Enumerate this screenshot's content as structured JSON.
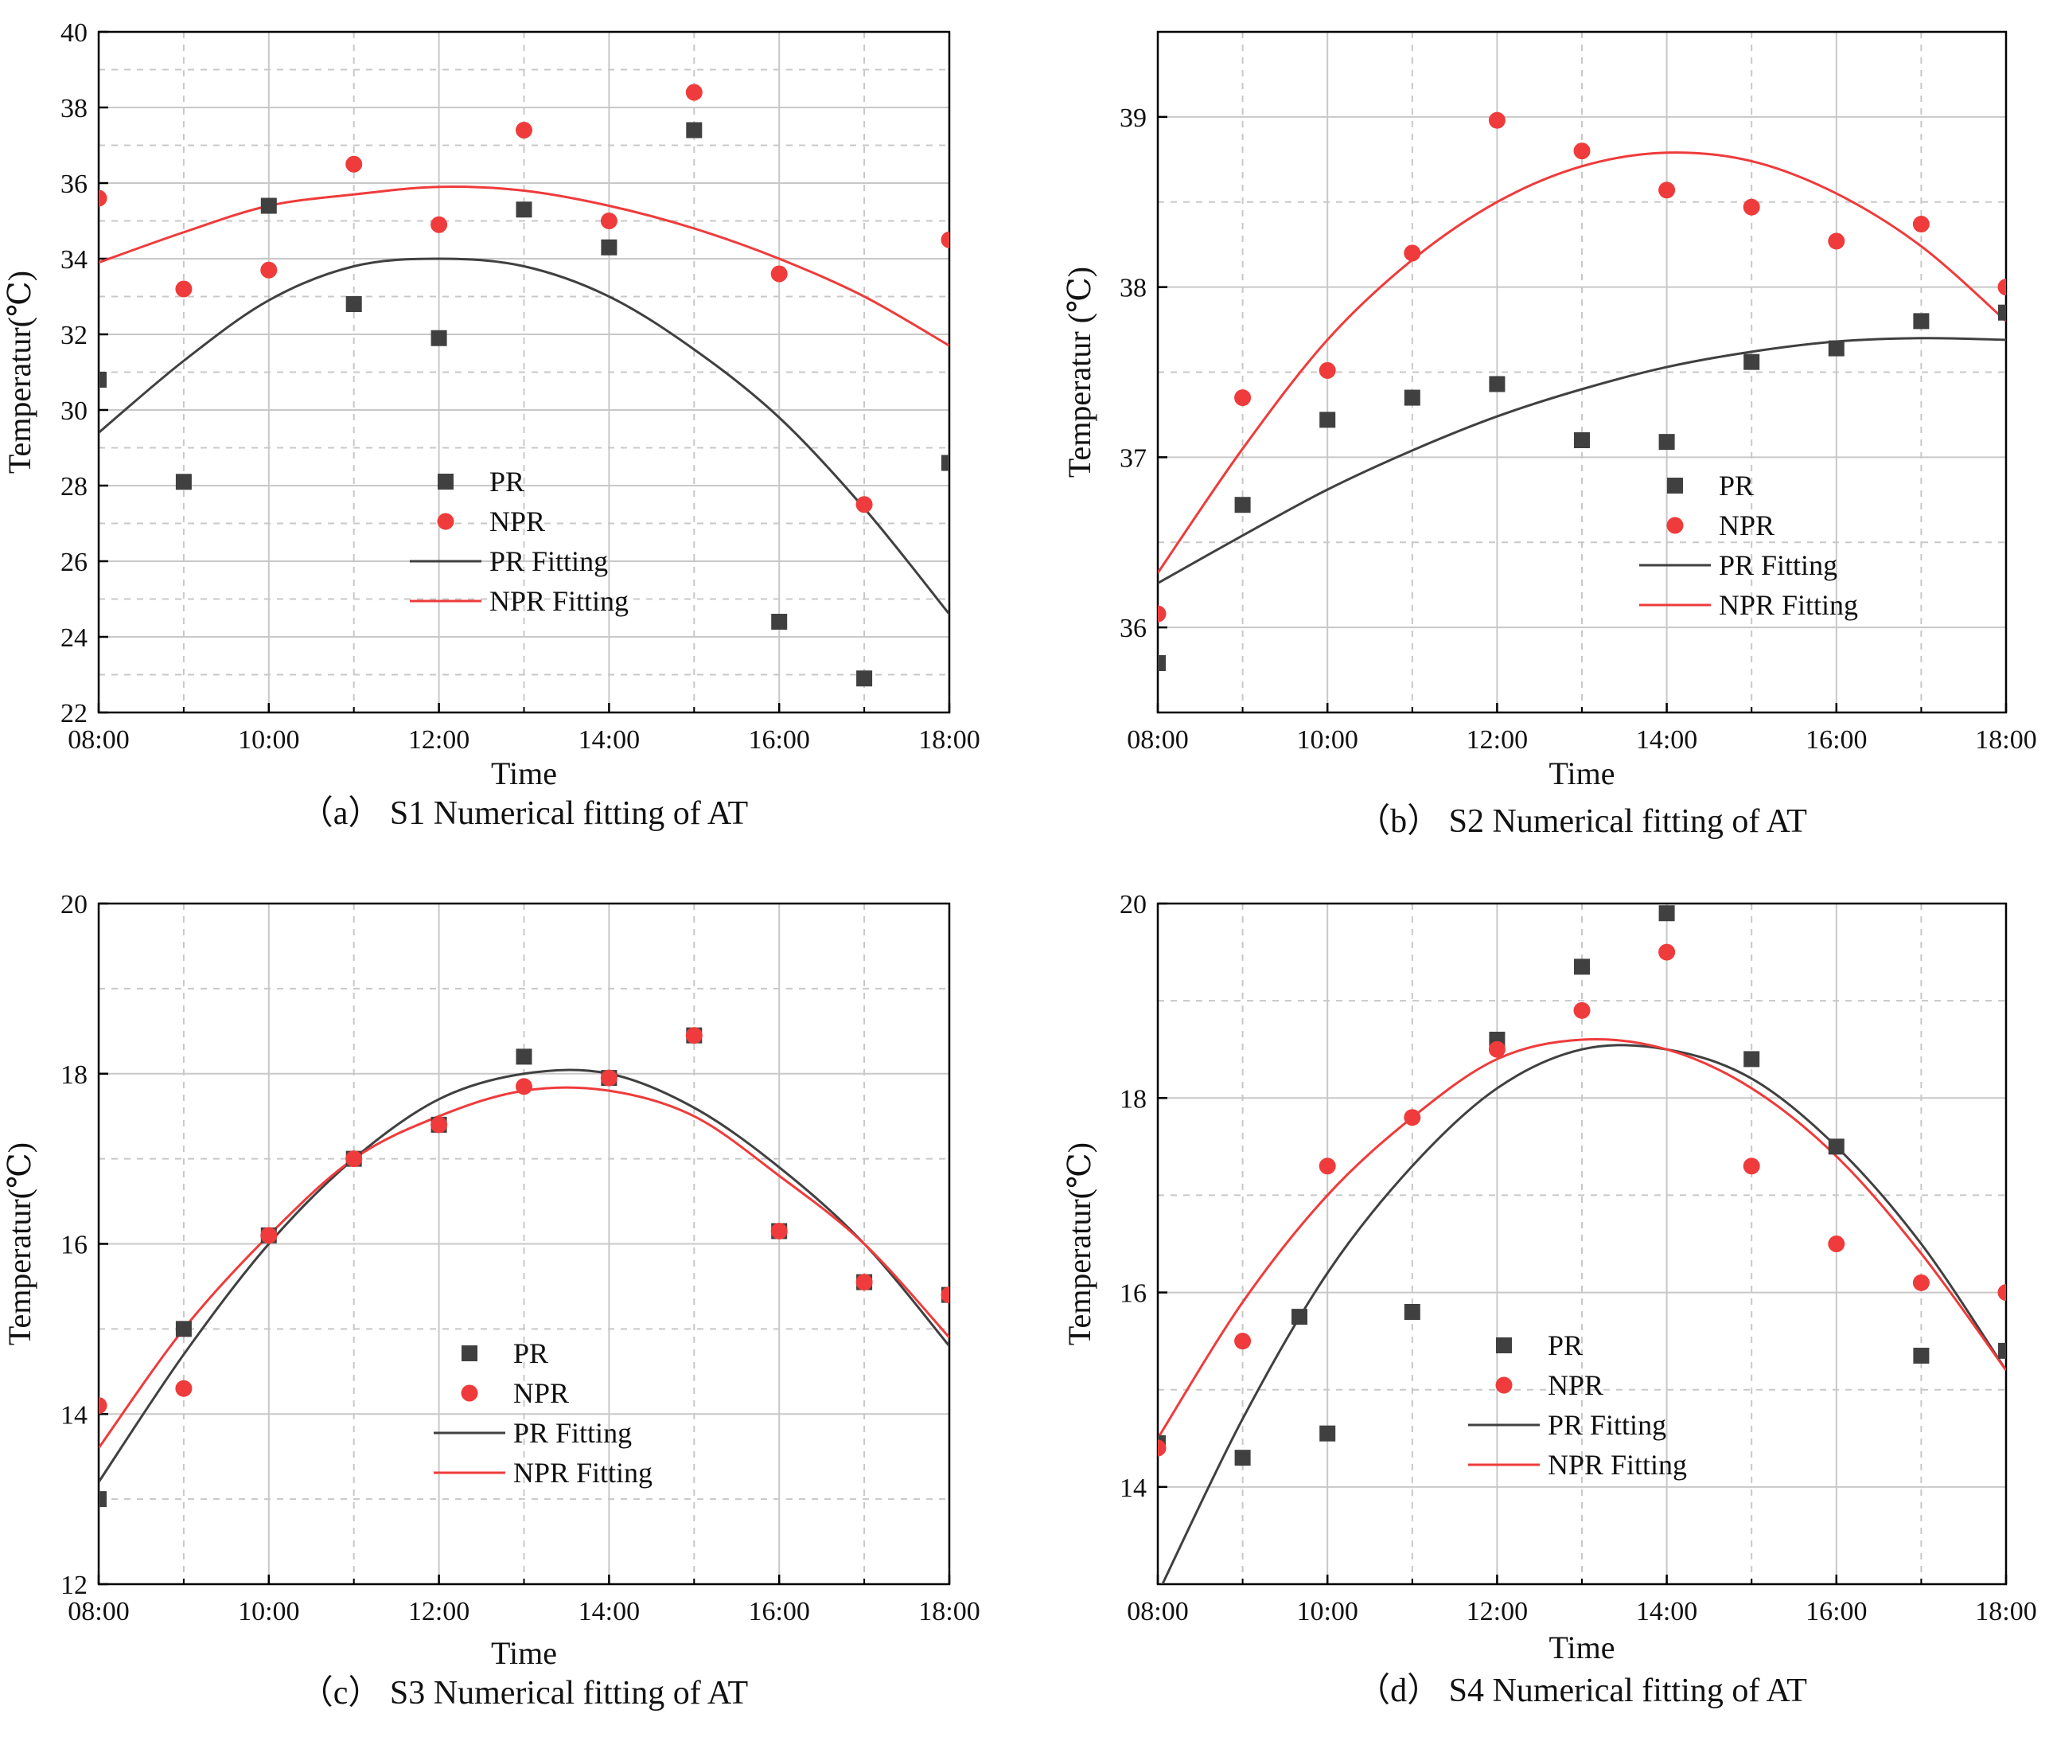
{
  "figure": {
    "colors": {
      "pr": "#404040",
      "npr": "#ef3b3b",
      "axis": "#000000",
      "grid": "#c8c8c8"
    }
  },
  "chart_data": [
    {
      "panel": "a",
      "type": "scatter",
      "caption": "（a） S1 Numerical fitting of AT",
      "xlabel": "Time",
      "ylabel": "Temperatur(℃)",
      "xlim": [
        8,
        18
      ],
      "ylim": [
        22,
        40
      ],
      "x_ticks": [
        "08:00",
        "10:00",
        "12:00",
        "14:00",
        "16:00",
        "18:00"
      ],
      "y_ticks": [
        "22",
        "24",
        "26",
        "28",
        "30",
        "32",
        "34",
        "36",
        "38",
        "40"
      ],
      "grid": true,
      "legend_position": "center",
      "series": [
        {
          "name": "PR",
          "marker": "square",
          "color": "#404040",
          "x": [
            8,
            9,
            10,
            11,
            12,
            13,
            14,
            15,
            16,
            17,
            18
          ],
          "y": [
            30.8,
            28.1,
            35.4,
            32.8,
            31.9,
            35.3,
            34.3,
            37.4,
            24.4,
            22.9,
            28.6
          ]
        },
        {
          "name": "NPR",
          "marker": "circle",
          "color": "#ef3b3b",
          "x": [
            8,
            9,
            10,
            11,
            12,
            13,
            14,
            15,
            16,
            17,
            18
          ],
          "y": [
            35.6,
            33.2,
            33.7,
            36.5,
            34.9,
            37.4,
            35.0,
            38.4,
            33.6,
            27.5,
            34.5
          ]
        },
        {
          "name": "PR Fitting",
          "line": true,
          "color": "#404040",
          "x": [
            8,
            9,
            10,
            11,
            12,
            13,
            14,
            15,
            16,
            17,
            18
          ],
          "y": [
            29.4,
            31.3,
            32.9,
            33.8,
            34.0,
            33.8,
            33.0,
            31.6,
            29.8,
            27.4,
            24.6
          ]
        },
        {
          "name": "NPR Fitting",
          "line": true,
          "color": "#ef3b3b",
          "x": [
            8,
            9,
            10,
            11,
            12,
            13,
            14,
            15,
            16,
            17,
            18
          ],
          "y": [
            33.9,
            34.7,
            35.4,
            35.7,
            35.9,
            35.8,
            35.4,
            34.8,
            34.0,
            33.0,
            31.7
          ]
        }
      ]
    },
    {
      "panel": "b",
      "type": "scatter",
      "caption": "（b） S2 Numerical fitting of AT",
      "xlabel": "Time",
      "ylabel": "Temperatur (℃)",
      "xlim": [
        8,
        18
      ],
      "ylim": [
        35.5,
        39.5
      ],
      "x_ticks": [
        "08:00",
        "10:00",
        "12:00",
        "14:00",
        "16:00",
        "18:00"
      ],
      "y_ticks": [
        "36",
        "37",
        "38",
        "39"
      ],
      "grid": true,
      "legend_position": "center-right",
      "series": [
        {
          "name": "PR",
          "marker": "square",
          "color": "#404040",
          "x": [
            8,
            9,
            10,
            11,
            12,
            13,
            14,
            15,
            16,
            17,
            18
          ],
          "y": [
            35.79,
            36.72,
            37.22,
            37.35,
            37.43,
            37.1,
            37.09,
            37.56,
            37.64,
            37.8,
            37.85
          ]
        },
        {
          "name": "NPR",
          "marker": "circle",
          "color": "#ef3b3b",
          "x": [
            8,
            9,
            10,
            11,
            12,
            13,
            14,
            15,
            16,
            17,
            18
          ],
          "y": [
            36.08,
            37.35,
            37.51,
            38.2,
            38.98,
            38.8,
            38.57,
            38.47,
            38.27,
            38.37,
            38.0
          ]
        },
        {
          "name": "PR Fitting",
          "line": true,
          "color": "#404040",
          "x": [
            8,
            9,
            10,
            11,
            12,
            13,
            14,
            15,
            16,
            17,
            18
          ],
          "y": [
            36.26,
            36.54,
            36.81,
            37.04,
            37.24,
            37.4,
            37.53,
            37.62,
            37.68,
            37.7,
            37.69
          ]
        },
        {
          "name": "NPR Fitting",
          "line": true,
          "color": "#ef3b3b",
          "x": [
            8,
            9,
            10,
            11,
            12,
            13,
            14,
            15,
            16,
            17,
            18
          ],
          "y": [
            36.32,
            37.05,
            37.69,
            38.16,
            38.5,
            38.71,
            38.79,
            38.74,
            38.55,
            38.24,
            37.8
          ]
        }
      ]
    },
    {
      "panel": "c",
      "type": "scatter",
      "caption": "（c） S3 Numerical fitting of AT",
      "xlabel": "Time",
      "ylabel": "Temperatur(℃)",
      "xlim": [
        8,
        18
      ],
      "ylim": [
        12,
        20
      ],
      "x_ticks": [
        "08:00",
        "10:00",
        "12:00",
        "14:00",
        "16:00",
        "18:00"
      ],
      "y_ticks": [
        "12",
        "14",
        "16",
        "18",
        "20"
      ],
      "grid": true,
      "legend_position": "center",
      "series": [
        {
          "name": "PR",
          "marker": "square",
          "color": "#404040",
          "x": [
            8,
            9,
            10,
            11,
            12,
            13,
            14,
            15,
            16,
            17,
            18
          ],
          "y": [
            13.0,
            15.0,
            16.1,
            17.0,
            17.4,
            18.2,
            17.95,
            18.45,
            16.15,
            15.55,
            15.4
          ]
        },
        {
          "name": "NPR",
          "marker": "circle",
          "color": "#ef3b3b",
          "x": [
            8,
            9,
            10,
            11,
            12,
            13,
            14,
            15,
            16,
            17,
            18
          ],
          "y": [
            14.1,
            14.3,
            16.1,
            17.0,
            17.4,
            17.85,
            17.95,
            18.45,
            16.15,
            15.55,
            15.4
          ]
        },
        {
          "name": "PR Fitting",
          "line": true,
          "color": "#404040",
          "x": [
            8,
            9,
            10,
            11,
            12,
            13,
            14,
            15,
            16,
            17,
            18
          ],
          "y": [
            13.2,
            14.7,
            16.0,
            17.0,
            17.7,
            18.0,
            18.0,
            17.6,
            16.9,
            16.0,
            14.8
          ]
        },
        {
          "name": "NPR Fitting",
          "line": true,
          "color": "#ef3b3b",
          "x": [
            8,
            9,
            10,
            11,
            12,
            13,
            14,
            15,
            16,
            17,
            18
          ],
          "y": [
            13.6,
            15.0,
            16.1,
            17.0,
            17.5,
            17.8,
            17.8,
            17.5,
            16.8,
            16.0,
            14.9
          ]
        }
      ]
    },
    {
      "panel": "d",
      "type": "scatter",
      "caption": "（d） S4 Numerical fitting of AT",
      "xlabel": "Time",
      "ylabel": "Temperatur(℃)",
      "xlim": [
        8,
        18
      ],
      "ylim": [
        13,
        20
      ],
      "x_ticks": [
        "08:00",
        "10:00",
        "12:00",
        "14:00",
        "16:00",
        "18:00"
      ],
      "y_ticks": [
        "14",
        "16",
        "18",
        "20"
      ],
      "grid": true,
      "legend_position": "center-left",
      "series": [
        {
          "name": "PR",
          "marker": "square",
          "color": "#404040",
          "x": [
            8,
            9,
            9.67,
            10,
            11,
            12,
            13,
            14,
            15,
            16,
            17,
            18
          ],
          "y": [
            14.45,
            14.3,
            15.75,
            14.55,
            15.8,
            18.6,
            19.35,
            19.9,
            18.4,
            17.5,
            15.35,
            15.4
          ]
        },
        {
          "name": "NPR",
          "marker": "circle",
          "color": "#ef3b3b",
          "x": [
            8,
            9,
            10,
            11,
            12,
            13,
            14,
            15,
            16,
            17,
            18
          ],
          "y": [
            14.4,
            15.5,
            17.3,
            17.8,
            18.5,
            18.9,
            19.5,
            17.3,
            16.5,
            16.1,
            16.0
          ]
        },
        {
          "name": "PR Fitting",
          "line": true,
          "color": "#404040",
          "x": [
            8,
            9,
            10,
            11,
            12,
            13,
            14,
            15,
            16,
            17,
            18
          ],
          "y": [
            12.9,
            14.7,
            16.2,
            17.3,
            18.1,
            18.5,
            18.5,
            18.2,
            17.5,
            16.5,
            15.2
          ]
        },
        {
          "name": "NPR Fitting",
          "line": true,
          "color": "#ef3b3b",
          "x": [
            8,
            9,
            10,
            11,
            12,
            13,
            14,
            15,
            16,
            17,
            18
          ],
          "y": [
            14.5,
            15.9,
            17.0,
            17.8,
            18.4,
            18.6,
            18.5,
            18.1,
            17.4,
            16.4,
            15.2
          ]
        }
      ]
    }
  ]
}
